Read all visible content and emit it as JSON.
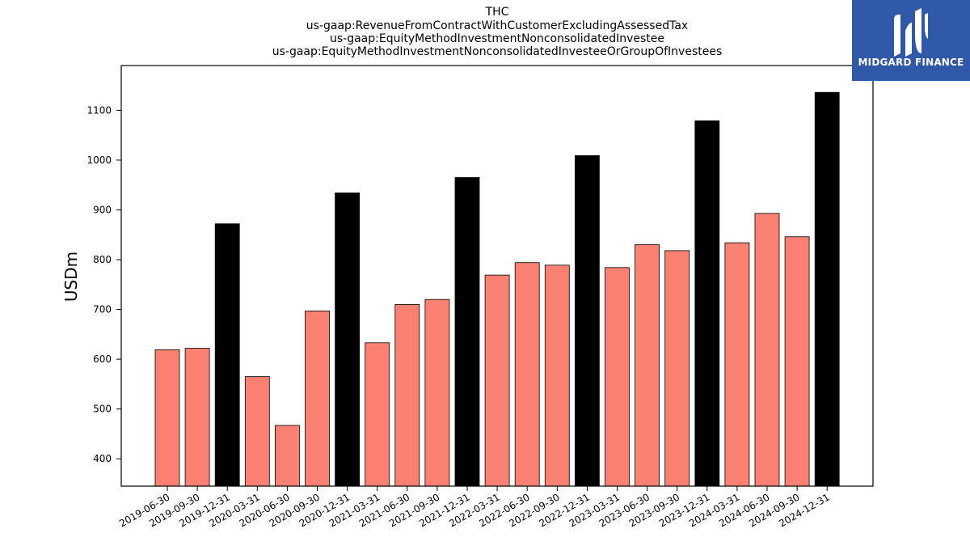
{
  "chart_data": {
    "type": "bar",
    "title_lines": [
      "THC",
      "us-gaap:RevenueFromContractWithCustomerExcludingAssessedTax",
      "us-gaap:EquityMethodInvestmentNonconsolidatedInvestee",
      "us-gaap:EquityMethodInvestmentNonconsolidatedInvesteeOrGroupOfInvestees"
    ],
    "ylabel": "USDm",
    "xlabel": "",
    "ylim": [
      345,
      1190
    ],
    "yticks": [
      400,
      500,
      600,
      700,
      800,
      900,
      1000,
      1100
    ],
    "categories": [
      "2019-06-30",
      "2019-09-30",
      "2019-12-31",
      "2020-03-31",
      "2020-06-30",
      "2020-09-30",
      "2020-12-31",
      "2021-03-31",
      "2021-06-30",
      "2021-09-30",
      "2021-12-31",
      "2022-03-31",
      "2022-06-30",
      "2022-09-30",
      "2022-12-31",
      "2023-03-31",
      "2023-06-30",
      "2023-09-30",
      "2023-12-31",
      "2024-03-31",
      "2024-06-30",
      "2024-09-30",
      "2024-12-31"
    ],
    "values": [
      619,
      622,
      872,
      565,
      467,
      697,
      934,
      633,
      710,
      720,
      965,
      769,
      794,
      789,
      1009,
      784,
      830,
      818,
      1079,
      834,
      893,
      846,
      1136
    ],
    "colors": {
      "quarter": "#fa8072",
      "year_end": "#000000",
      "edge": "#000000"
    },
    "highlight": "12-31 bars drawn in black"
  },
  "logo": {
    "text": "MIDGARD FINANCE",
    "bg": "#2f59a8"
  }
}
